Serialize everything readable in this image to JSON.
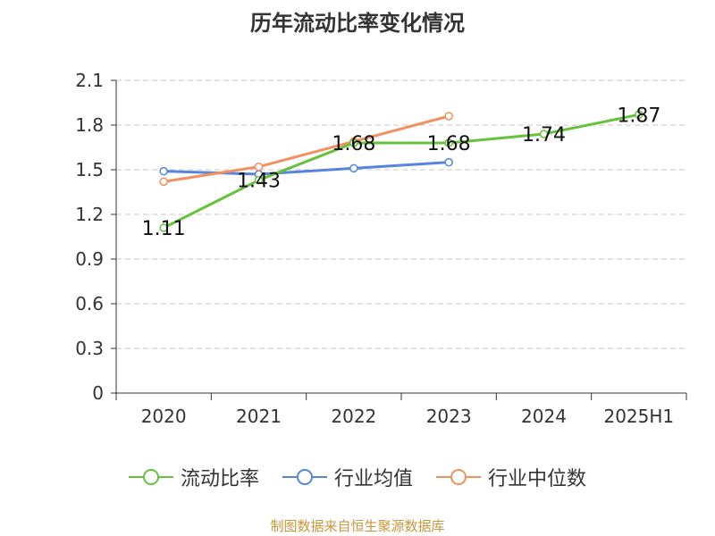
{
  "title": "历年流动比率变化情况",
  "footer": "制图数据来自恒生聚源数据库",
  "colors": {
    "footer": "#c8963c"
  },
  "chart_data": {
    "type": "line",
    "categories": [
      "2020",
      "2021",
      "2022",
      "2023",
      "2024",
      "2025H1"
    ],
    "ylim": [
      0,
      2.1
    ],
    "yticks": [
      "0",
      "0.3",
      "0.6",
      "0.9",
      "1.2",
      "1.5",
      "1.8",
      "2.1"
    ],
    "grid": true,
    "legend_position": "bottom",
    "series": [
      {
        "name": "流动比率",
        "color": "#66c23a",
        "values": [
          1.11,
          1.43,
          1.68,
          1.68,
          1.74,
          1.87
        ],
        "labels": [
          "1.11",
          "1.43",
          "1.68",
          "1.68",
          "1.74",
          "1.87"
        ]
      },
      {
        "name": "行业均值",
        "color": "#5585dd",
        "values": [
          1.49,
          1.47,
          1.51,
          1.55,
          null,
          null
        ]
      },
      {
        "name": "行业中位数",
        "color": "#f2905f",
        "values": [
          1.42,
          1.52,
          1.69,
          1.86,
          null,
          null
        ]
      }
    ]
  }
}
